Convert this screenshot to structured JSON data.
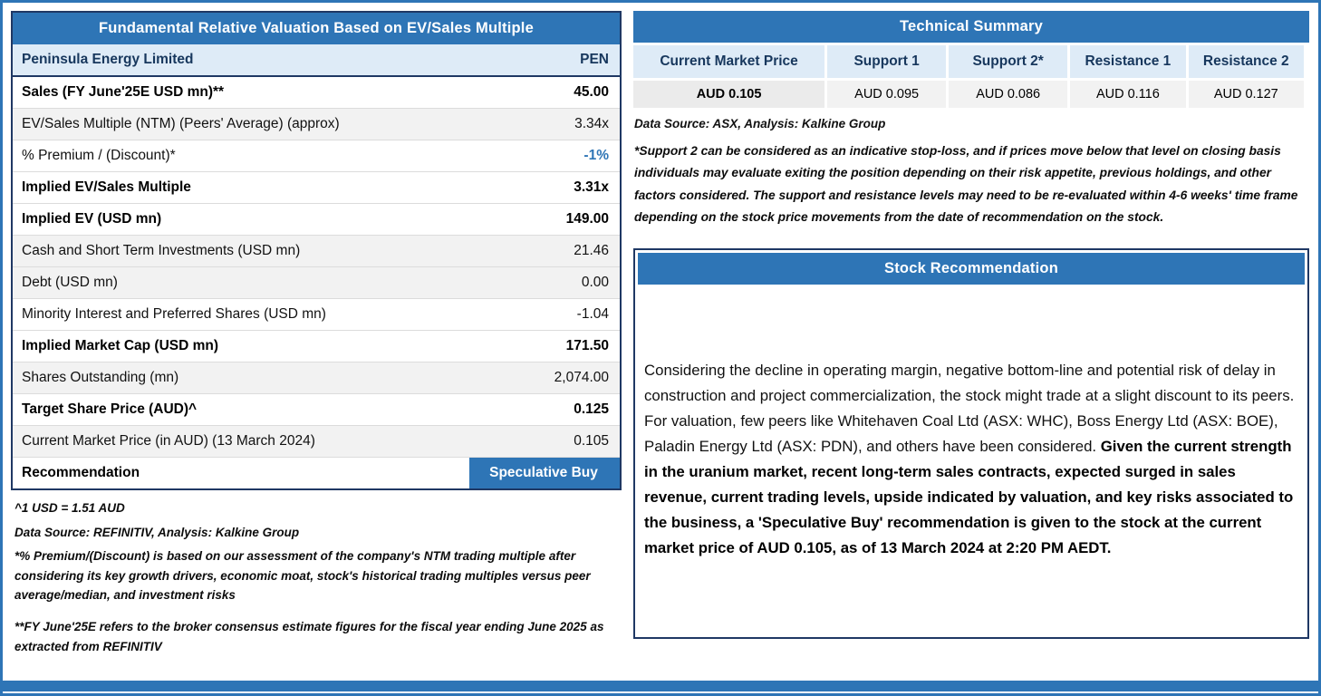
{
  "colors": {
    "accent_blue": "#2E75B6",
    "light_blue": "#DEEBF7",
    "row_shade": "#F2F2F2",
    "dark_border": "#1F3864",
    "premium_value_blue": "#2E75B6"
  },
  "valuation": {
    "title": "Fundamental Relative Valuation Based on EV/Sales Multiple",
    "header": {
      "label": "Peninsula Energy Limited",
      "value": "PEN"
    },
    "rows": [
      {
        "label": "Sales (FY June'25E USD mn)**",
        "value": "45.00",
        "bold": true,
        "shaded": false
      },
      {
        "label": "EV/Sales Multiple (NTM)  (Peers' Average) (approx)",
        "value": "3.34x",
        "bold": false,
        "shaded": true
      },
      {
        "label": "% Premium / (Discount)*",
        "value": "-1%",
        "bold": false,
        "shaded": false,
        "value_blue": true
      },
      {
        "label": "Implied EV/Sales Multiple",
        "value": "3.31x",
        "bold": true,
        "shaded": false
      },
      {
        "label": "Implied EV (USD mn)",
        "value": "149.00",
        "bold": true,
        "shaded": false
      },
      {
        "label": "Cash and Short Term Investments (USD mn)",
        "value": "21.46",
        "bold": false,
        "shaded": true
      },
      {
        "label": "Debt (USD mn)",
        "value": "0.00",
        "bold": false,
        "shaded": true
      },
      {
        "label": "Minority Interest and Preferred Shares (USD mn)",
        "value": "-1.04",
        "bold": false,
        "shaded": false
      },
      {
        "label": "Implied Market Cap (USD mn)",
        "value": "171.50",
        "bold": true,
        "shaded": false
      },
      {
        "label": "Shares Outstanding (mn)",
        "value": "2,074.00",
        "bold": false,
        "shaded": true
      },
      {
        "label": "Target Share Price (AUD)^",
        "value": "0.125",
        "bold": true,
        "shaded": false
      },
      {
        "label": "Current Market Price (in AUD) (13 March 2024)",
        "value": "0.105",
        "bold": false,
        "shaded": true
      },
      {
        "label": "Recommendation",
        "value": "Speculative Buy",
        "bold": true,
        "shaded": false,
        "highlight": true
      }
    ],
    "footnotes": [
      "^1 USD = 1.51 AUD",
      "Data Source: REFINITIV, Analysis: Kalkine Group",
      "*% Premium/(Discount) is based on our assessment of the company's NTM trading multiple after considering its key growth drivers, economic moat, stock's historical trading multiples versus peer average/median, and investment risks",
      "**FY June'25E refers to the broker consensus estimate figures for the fiscal year ending June 2025  as extracted from REFINITIV"
    ]
  },
  "technical": {
    "title": "Technical Summary",
    "columns": [
      "Current Market Price",
      "Support 1",
      "Support 2*",
      "Resistance 1",
      "Resistance 2"
    ],
    "values": [
      "AUD 0.105",
      "AUD 0.095",
      "AUD 0.086",
      "AUD 0.116",
      "AUD 0.127"
    ],
    "source": "Data Source: ASX, Analysis: Kalkine Group",
    "footnote": "*Support 2 can be considered as an indicative stop-loss, and if prices move below that level on closing basis individuals may evaluate exiting the position depending on their risk appetite, previous holdings, and other factors considered. The support and resistance levels may need to be re-evaluated within 4-6 weeks' time frame depending on the stock price movements from the date of recommendation on the stock."
  },
  "recommendation": {
    "title": "Stock Recommendation",
    "text_normal": "Considering the decline in operating margin, negative bottom-line and potential risk of delay in construction and project commercialization, the stock might trade at a slight discount to its peers. For valuation, few peers like Whitehaven Coal Ltd (ASX: WHC), Boss Energy Ltd (ASX: BOE), Paladin Energy Ltd (ASX: PDN), and others have been considered. ",
    "text_bold": "Given the current strength in the uranium market, recent long-term sales contracts, expected surged in sales revenue, current trading levels, upside indicated by valuation, and key risks associated to the business, a 'Speculative Buy' recommendation is given to the stock at the current market price of AUD 0.105, as of 13 March 2024 at 2:20 PM AEDT."
  }
}
